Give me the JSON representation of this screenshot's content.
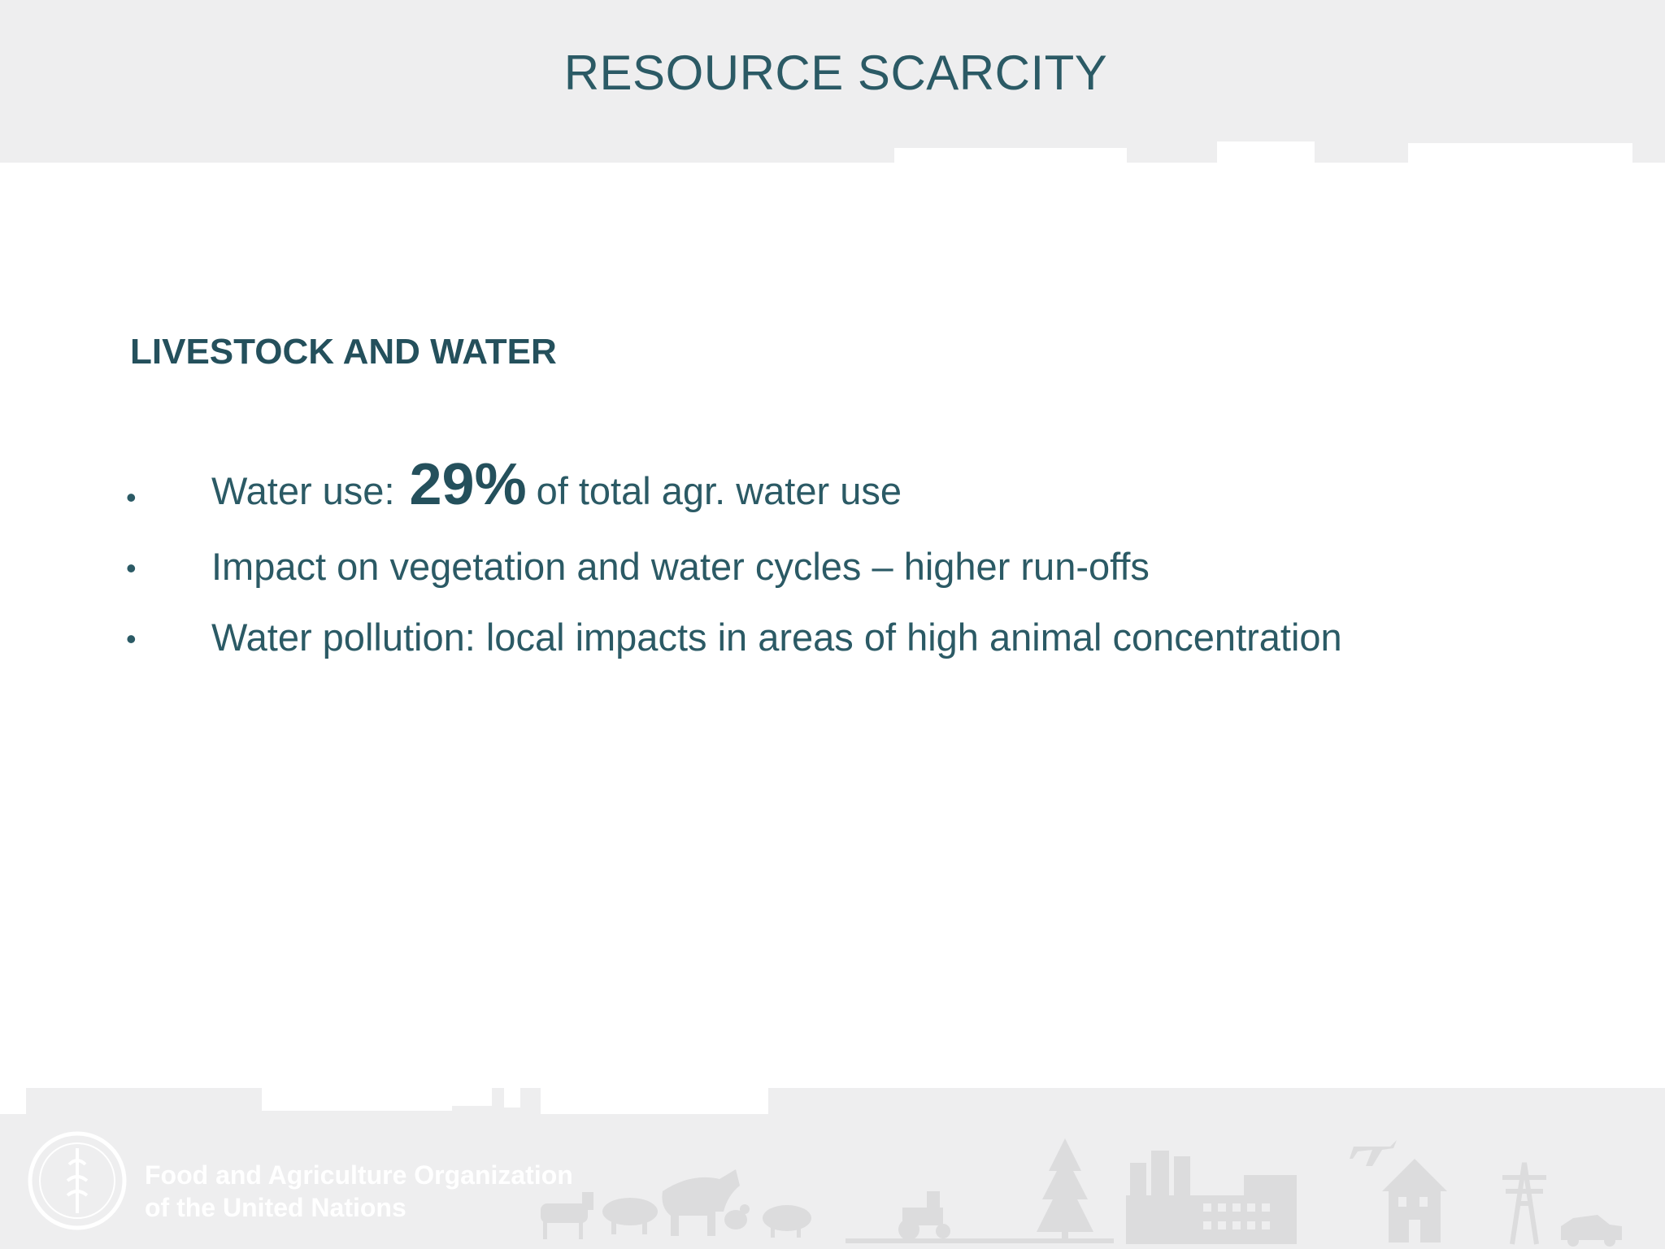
{
  "slide": {
    "title": "RESOURCE SCARCITY",
    "subheading": "LIVESTOCK AND WATER"
  },
  "bullets": [
    {
      "prefix": "Water use:",
      "highlight": "29%",
      "suffix": "of total agr. water use"
    },
    {
      "text": "Impact on vegetation and water cycles – higher run-offs"
    },
    {
      "text": "Water pollution: local impacts in areas of high animal concentration"
    }
  ],
  "footer": {
    "org_line1": "Food and Agriculture Organization",
    "org_line2": "of the United Nations"
  },
  "colors": {
    "band": "#eeeeef",
    "text": "#2b5a65",
    "silhouette": "#dcdcdd"
  },
  "icons": [
    "fao-logo-icon",
    "goat-icon",
    "sheep-icon",
    "pig-icon",
    "cow-icon",
    "chicken-icon",
    "tractor-icon",
    "tree-icon",
    "factory-icon",
    "airplane-icon",
    "house-icon",
    "power-pylon-icon",
    "car-icon"
  ]
}
